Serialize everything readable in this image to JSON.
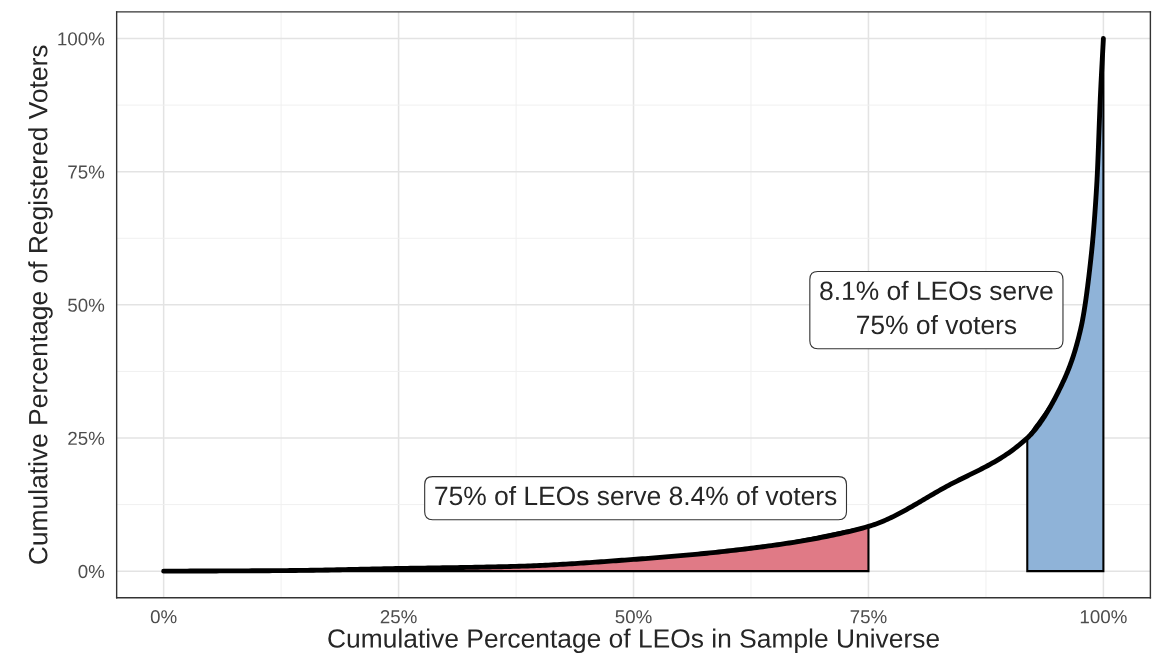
{
  "chart_data": {
    "type": "line",
    "xlabel": "Cumulative Percentage of LEOs in Sample Universe",
    "ylabel": "Cumulative Percentage of Registered Voters",
    "series": [
      {
        "type": "area",
        "color": "#e07a86",
        "x": [
          0,
          12.5,
          25,
          37.5,
          50,
          62.5,
          75
        ],
        "values": [
          0,
          0.1,
          0.5,
          0.9,
          2.2,
          4.3,
          8.4
        ]
      },
      {
        "type": "area",
        "color": "#8fb3d8",
        "x": [
          91.9,
          95.7,
          97.6,
          98.7,
          99.3,
          99.7,
          100
        ],
        "values": [
          25,
          35.5,
          45.6,
          59.2,
          72.8,
          89.9,
          100
        ]
      },
      {
        "color": "#000000",
        "x": [
          0,
          12.5,
          25,
          37.5,
          50,
          62.5,
          75,
          83.1,
          91.9,
          95.7,
          97.6,
          98.7,
          99.3,
          99.7,
          100
        ],
        "values": [
          0,
          0.1,
          0.5,
          0.9,
          2.2,
          4.3,
          8.4,
          15.7,
          25,
          35.5,
          45.6,
          59.2,
          72.8,
          89.9,
          100
        ]
      }
    ],
    "xlim": [
      -5,
      105
    ],
    "ylim": [
      -5,
      105
    ],
    "xticks": [
      {
        "value": 0,
        "label": "0%"
      },
      {
        "value": 25,
        "label": "25%"
      },
      {
        "value": 50,
        "label": "50%"
      },
      {
        "value": 75,
        "label": "75%"
      },
      {
        "value": 100,
        "label": "100%"
      }
    ],
    "yticks": [
      {
        "value": 0,
        "label": "0%"
      },
      {
        "value": 25,
        "label": "25%"
      },
      {
        "value": 50,
        "label": "50%"
      },
      {
        "value": 75,
        "label": "75%"
      },
      {
        "value": 100,
        "label": "100%"
      }
    ],
    "grid": true,
    "annotations": [
      "8.1% of LEOs serve\n75% of voters",
      "75% of LEOs serve 8.4% of voters"
    ]
  }
}
